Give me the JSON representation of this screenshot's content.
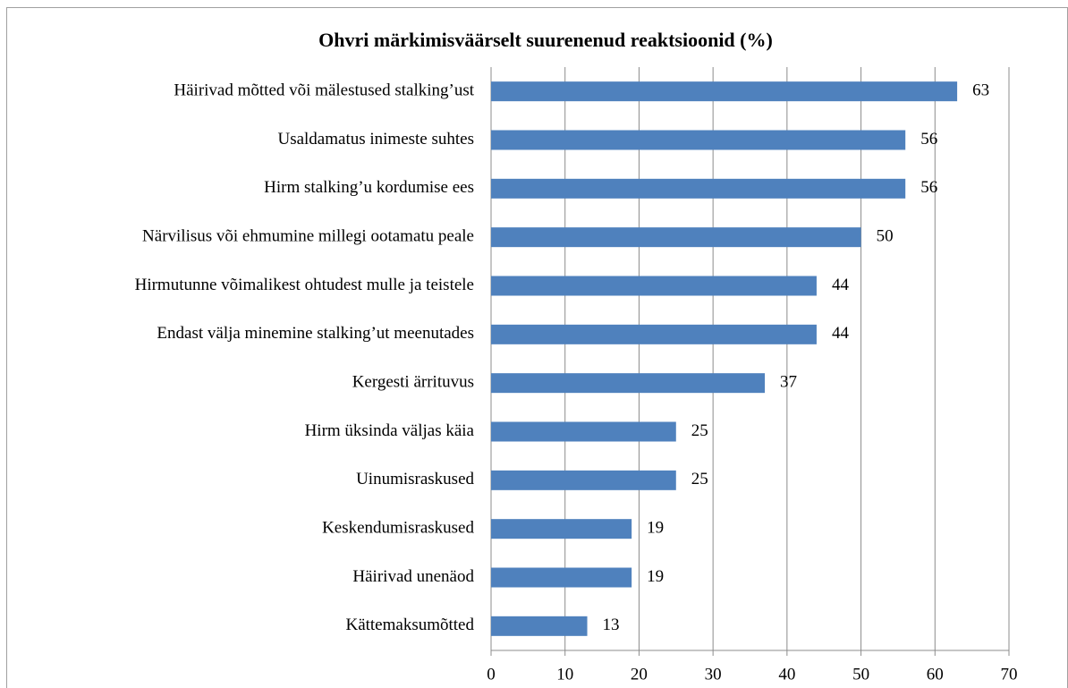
{
  "chart_data": {
    "type": "bar",
    "orientation": "horizontal",
    "title": "Ohvri märkimisväärselt suurenenud reaktsioonid (%)",
    "categories": [
      "Häirivad mõtted või mälestused stalking’ust",
      "Usaldamatus inimeste suhtes",
      "Hirm stalking’u kordumise ees",
      "Närvilisus või ehmumine millegi ootamatu peale",
      "Hirmutunne võimalikest ohtudest mulle ja teistele",
      "Endast välja minemine stalking’ut meenutades",
      "Kergesti ärrituvus",
      "Hirm üksinda väljas käia",
      "Uinumisraskused",
      "Keskendumisraskused",
      "Häirivad unenäod",
      "Kättemaksumõtted"
    ],
    "values": [
      63,
      56,
      56,
      50,
      44,
      44,
      37,
      25,
      25,
      19,
      19,
      13
    ],
    "color": "#4f81bd",
    "xlim": [
      0,
      70
    ],
    "xticks": [
      0,
      10,
      20,
      30,
      40,
      50,
      60,
      70
    ],
    "grid": true
  }
}
